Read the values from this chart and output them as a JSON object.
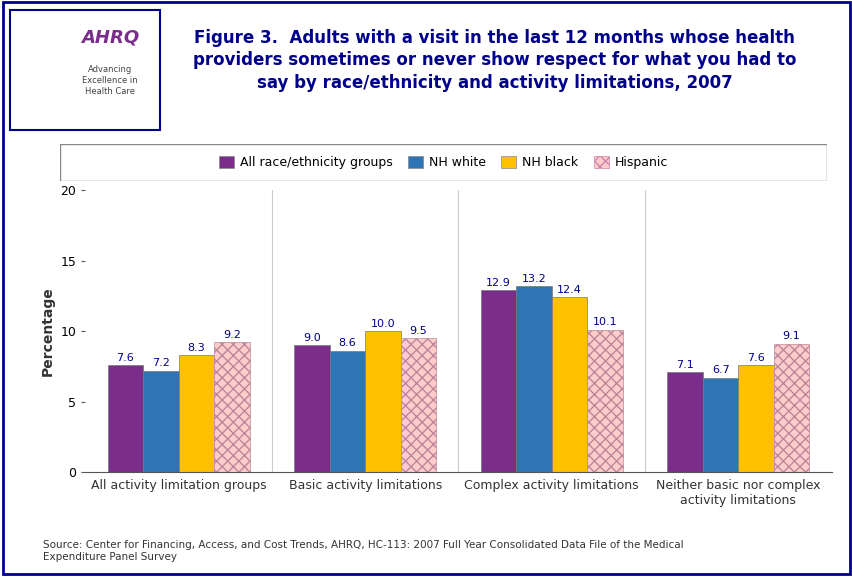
{
  "title": "Figure 3.  Adults with a visit in the last 12 months whose health\nproviders sometimes or never show respect for what you had to\nsay by race/ethnicity and activity limitations, 2007",
  "ylabel": "Percentage",
  "ylim": [
    0,
    20
  ],
  "yticks": [
    0,
    5,
    10,
    15,
    20
  ],
  "categories": [
    "All activity limitation groups",
    "Basic activity limitations",
    "Complex activity limitations",
    "Neither basic nor complex\nactivity limitations"
  ],
  "series": [
    {
      "label": "All race/ethnicity groups",
      "values": [
        7.6,
        9.0,
        12.9,
        7.1
      ],
      "color": "#7B2D8B",
      "hatch": null
    },
    {
      "label": "NH white",
      "values": [
        7.2,
        8.6,
        13.2,
        6.7
      ],
      "color": "#2E75B6",
      "hatch": null
    },
    {
      "label": "NH black",
      "values": [
        8.3,
        10.0,
        12.4,
        7.6
      ],
      "color": "#FFC000",
      "hatch": null
    },
    {
      "label": "Hispanic",
      "values": [
        9.2,
        9.5,
        10.1,
        9.1
      ],
      "color": "#FFCCCC",
      "hatch": "xxx"
    }
  ],
  "source_text": "Source: Center for Financing, Access, and Cost Trends, AHRQ, HC-113: 2007 Full Year Consolidated Data File of the Medical\nExpenditure Panel Survey",
  "background_color": "#FFFFFF",
  "border_color": "#00008B",
  "bar_width": 0.19,
  "value_fontsize": 8,
  "label_fontsize": 9,
  "title_fontsize": 12,
  "title_color": "#00008B",
  "value_label_color": "#00008B",
  "header_teal": "#009999",
  "header_bg": "#1B75BB"
}
